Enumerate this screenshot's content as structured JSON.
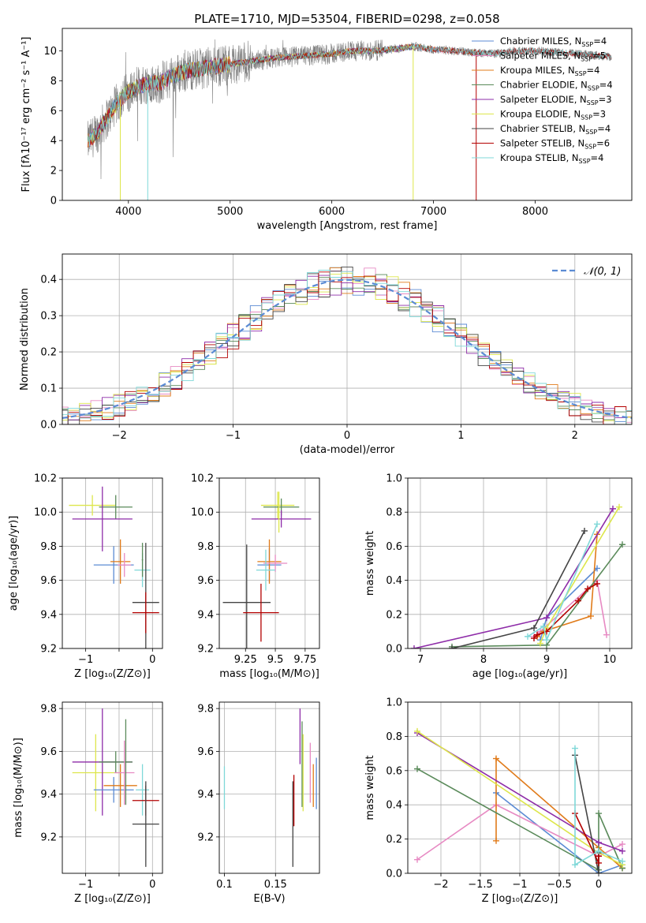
{
  "title": "PLATE=1710, MJD=53504, FIBERID=0298, z=0.058",
  "colors": {
    "chabrier_miles": "#5b8bd4",
    "salpeter_miles": "#e78ac3",
    "kroupa_miles": "#e07b1a",
    "chabrier_elodie": "#5a8a5a",
    "salpeter_elodie": "#8e2ca8",
    "kroupa_elodie": "#dde64b",
    "chabrier_stelib": "#444444",
    "salpeter_stelib": "#b30000",
    "kroupa_stelib": "#7fd8d8",
    "data": "#808080"
  },
  "chart_data": [
    {
      "id": "spectrum",
      "type": "line",
      "xlabel": "wavelength [Angstrom, rest frame]",
      "ylabel": "Flux [fλ10⁻¹⁷ erg cm⁻² s⁻¹ A⁻¹]",
      "xlim": [
        3350,
        8950
      ],
      "ylim": [
        0,
        11.5
      ],
      "xticks": [
        4000,
        5000,
        6000,
        7000,
        8000
      ],
      "yticks": [
        0,
        2,
        4,
        6,
        8,
        10
      ],
      "grid": false,
      "legend": "top-right",
      "legend_entries": [
        "Chabrier MILES, N_SSP=4",
        "Salpeter MILES, N_SSP=5",
        "Kroupa MILES, N_SSP=4",
        "Chabrier ELODIE, N_SSP=4",
        "Salpeter ELODIE, N_SSP=3",
        "Kroupa ELODIE, N_SSP=3",
        "Chabrier STELIB, N_SSP=4",
        "Salpeter STELIB, N_SSP=6",
        "Kroupa STELIB, N_SSP=4"
      ],
      "data_continuum": [
        [
          3600,
          3.9
        ],
        [
          3700,
          4.6
        ],
        [
          3800,
          5.6
        ],
        [
          3900,
          6.6
        ],
        [
          4000,
          7.3
        ],
        [
          4100,
          7.6
        ],
        [
          4200,
          7.9
        ],
        [
          4300,
          7.8
        ],
        [
          4400,
          8.2
        ],
        [
          4500,
          8.5
        ],
        [
          4600,
          8.7
        ],
        [
          4700,
          8.8
        ],
        [
          4800,
          8.9
        ],
        [
          4900,
          9.0
        ],
        [
          5000,
          9.1
        ],
        [
          5200,
          9.3
        ],
        [
          5400,
          9.5
        ],
        [
          5600,
          9.6
        ],
        [
          5800,
          9.7
        ],
        [
          6000,
          9.8
        ],
        [
          6200,
          10.0
        ],
        [
          6400,
          10.0
        ],
        [
          6600,
          10.1
        ],
        [
          6800,
          10.3
        ],
        [
          7000,
          10.1
        ],
        [
          7200,
          10.0
        ],
        [
          7400,
          9.9
        ],
        [
          7600,
          9.8
        ],
        [
          7800,
          10.0
        ],
        [
          8000,
          10.0
        ],
        [
          8200,
          9.9
        ],
        [
          8400,
          9.8
        ],
        [
          8600,
          9.7
        ],
        [
          8750,
          9.6
        ]
      ]
    },
    {
      "id": "residuals",
      "type": "line",
      "xlabel": "(data-model)/error",
      "ylabel": "Normed distribution",
      "xlim": [
        -2.5,
        2.5
      ],
      "ylim": [
        0,
        0.47
      ],
      "xticks": [
        -2,
        -1,
        0,
        1,
        2
      ],
      "yticks": [
        0.0,
        0.1,
        0.2,
        0.3,
        0.4
      ],
      "grid": true,
      "legend": "top-right",
      "legend_label": "𝒩(0, 1)"
    },
    {
      "id": "age_vs_Z",
      "type": "scatter",
      "xlabel": "Z [log₁₀(Z/Z⊙)]",
      "ylabel": "age  [log₁₀(age/yr)]",
      "xlim": [
        -1.35,
        0.15
      ],
      "ylim": [
        9.2,
        10.2
      ],
      "xticks": [
        -1,
        -0.5,
        0
      ],
      "xtick_labels": [
        "−1",
        "",
        "0"
      ],
      "yticks": [
        9.2,
        9.4,
        9.6,
        9.8,
        10.0,
        10.2
      ],
      "grid": true,
      "points": [
        {
          "x": -0.9,
          "y": 10.04,
          "xerr": 0.35,
          "yerr": 0.06,
          "c": "kroupa_elodie"
        },
        {
          "x": -0.55,
          "y": 10.03,
          "xerr": 0.25,
          "yerr": 0.07,
          "c": "chabrier_elodie"
        },
        {
          "x": -0.75,
          "y": 9.96,
          "xerr": 0.45,
          "yerr": 0.19,
          "c": "salpeter_elodie"
        },
        {
          "x": -0.58,
          "y": 9.69,
          "xerr": 0.3,
          "yerr": 0.11,
          "c": "chabrier_miles"
        },
        {
          "x": -0.48,
          "y": 9.71,
          "xerr": 0.15,
          "yerr": 0.13,
          "c": "kroupa_miles"
        },
        {
          "x": -0.42,
          "y": 9.69,
          "xerr": 0.1,
          "yerr": 0.07,
          "c": "salpeter_miles"
        },
        {
          "x": -0.15,
          "y": 9.66,
          "xerr": 0.12,
          "yerr": 0.1,
          "c": "kroupa_stelib"
        },
        {
          "x": -0.1,
          "y": 9.47,
          "xerr": 0.2,
          "yerr": 0.35,
          "c": "chabrier_stelib"
        },
        {
          "x": -0.1,
          "y": 9.41,
          "xerr": 0.2,
          "yerr": 0.12,
          "c": "salpeter_stelib"
        },
        {
          "x": -0.15,
          "y": 9.72,
          "xerr": 0.01,
          "yerr": 0.1,
          "c": "chabrier_elodie"
        }
      ]
    },
    {
      "id": "age_vs_mass",
      "type": "scatter",
      "xlabel": "mass [log₁₀(M/M⊙)]",
      "xlim": [
        9.03,
        9.87
      ],
      "ylim": [
        9.2,
        10.2
      ],
      "xticks": [
        9.25,
        9.5,
        9.75
      ],
      "yticks": [
        9.2,
        9.4,
        9.6,
        9.8,
        10.0,
        10.2
      ],
      "grid": true,
      "points": [
        {
          "x": 9.52,
          "y": 10.04,
          "xerr": 0.14,
          "yerr": 0.08,
          "c": "kroupa_elodie"
        },
        {
          "x": 9.55,
          "y": 10.03,
          "xerr": 0.15,
          "yerr": 0.05,
          "c": "chabrier_elodie"
        },
        {
          "x": 9.55,
          "y": 9.96,
          "xerr": 0.25,
          "yerr": 0.05,
          "c": "salpeter_elodie"
        },
        {
          "x": 9.53,
          "y": 10.0,
          "xerr": 0.01,
          "yerr": 0.12,
          "c": "kroupa_elodie"
        },
        {
          "x": 9.45,
          "y": 9.69,
          "xerr": 0.1,
          "yerr": 0.1,
          "c": "chabrier_miles"
        },
        {
          "x": 9.45,
          "y": 9.71,
          "xerr": 0.1,
          "yerr": 0.13,
          "c": "kroupa_miles"
        },
        {
          "x": 9.5,
          "y": 9.7,
          "xerr": 0.1,
          "yerr": 0.05,
          "c": "salpeter_miles"
        },
        {
          "x": 9.42,
          "y": 9.66,
          "xerr": 0.08,
          "yerr": 0.12,
          "c": "kroupa_stelib"
        },
        {
          "x": 9.26,
          "y": 9.47,
          "xerr": 0.2,
          "yerr": 0.34,
          "c": "chabrier_stelib"
        },
        {
          "x": 9.38,
          "y": 9.41,
          "xerr": 0.15,
          "yerr": 0.17,
          "c": "salpeter_stelib"
        }
      ]
    },
    {
      "id": "weight_vs_age",
      "type": "line",
      "xlabel": "age  [log₁₀(age/yr)]",
      "ylabel": "mass weight",
      "xlim": [
        6.8,
        10.35
      ],
      "ylim": [
        0,
        1.0
      ],
      "xticks": [
        7,
        8,
        9,
        10
      ],
      "yticks": [
        0.0,
        0.2,
        0.4,
        0.6,
        0.8,
        1.0
      ],
      "grid": true,
      "series": [
        {
          "c": "chabrier_miles",
          "x": [
            8.9,
            9.0,
            9.8
          ],
          "y": [
            0.05,
            0.18,
            0.47
          ]
        },
        {
          "c": "salpeter_miles",
          "x": [
            8.8,
            8.9,
            9.8,
            9.95
          ],
          "y": [
            0.07,
            0.1,
            0.4,
            0.08
          ]
        },
        {
          "c": "kroupa_miles",
          "x": [
            8.85,
            8.95,
            9.7,
            9.8
          ],
          "y": [
            0.07,
            0.1,
            0.19,
            0.67
          ]
        },
        {
          "c": "chabrier_elodie",
          "x": [
            7.5,
            9.0,
            10.2
          ],
          "y": [
            0.01,
            0.02,
            0.61
          ]
        },
        {
          "c": "salpeter_elodie",
          "x": [
            6.9,
            9.0,
            10.05
          ],
          "y": [
            0.0,
            0.18,
            0.82
          ]
        },
        {
          "c": "kroupa_elodie",
          "x": [
            8.9,
            9.0,
            10.15
          ],
          "y": [
            0.03,
            0.12,
            0.83
          ]
        },
        {
          "c": "chabrier_stelib",
          "x": [
            7.5,
            8.8,
            9.6
          ],
          "y": [
            0.0,
            0.12,
            0.69
          ]
        },
        {
          "c": "salpeter_stelib",
          "x": [
            8.8,
            8.85,
            9.0,
            9.5,
            9.65,
            9.8
          ],
          "y": [
            0.06,
            0.08,
            0.1,
            0.28,
            0.35,
            0.38
          ]
        },
        {
          "c": "kroupa_stelib",
          "x": [
            8.7,
            8.95,
            9.0,
            9.8
          ],
          "y": [
            0.07,
            0.13,
            0.05,
            0.73
          ]
        }
      ]
    },
    {
      "id": "mass_vs_Z",
      "type": "scatter",
      "xlabel": "Z [log₁₀(Z/Z⊙)]",
      "ylabel": "mass [log₁₀(M/M⊙)]",
      "xlim": [
        -1.35,
        0.15
      ],
      "ylim": [
        9.03,
        9.83
      ],
      "xticks": [
        -1,
        -0.5,
        0
      ],
      "xtick_labels": [
        "−1",
        "",
        "0"
      ],
      "yticks": [
        9.2,
        9.4,
        9.6,
        9.8
      ],
      "grid": true,
      "points": [
        {
          "x": -0.85,
          "y": 9.5,
          "xerr": 0.35,
          "yerr": 0.18,
          "c": "kroupa_elodie"
        },
        {
          "x": -0.75,
          "y": 9.55,
          "xerr": 0.45,
          "yerr": 0.25,
          "c": "salpeter_elodie"
        },
        {
          "x": -0.55,
          "y": 9.55,
          "xerr": 0.25,
          "yerr": 0.05,
          "c": "chabrier_elodie"
        },
        {
          "x": -0.58,
          "y": 9.42,
          "xerr": 0.3,
          "yerr": 0.06,
          "c": "chabrier_miles"
        },
        {
          "x": -0.48,
          "y": 9.44,
          "xerr": 0.25,
          "yerr": 0.1,
          "c": "kroupa_miles"
        },
        {
          "x": -0.42,
          "y": 9.5,
          "xerr": 0.15,
          "yerr": 0.15,
          "c": "salpeter_miles"
        },
        {
          "x": -0.4,
          "y": 9.55,
          "xerr": 0.01,
          "yerr": 0.2,
          "c": "chabrier_elodie"
        },
        {
          "x": -0.15,
          "y": 9.42,
          "xerr": 0.1,
          "yerr": 0.12,
          "c": "kroupa_stelib"
        },
        {
          "x": -0.1,
          "y": 9.37,
          "xerr": 0.2,
          "yerr": 0.07,
          "c": "salpeter_stelib"
        },
        {
          "x": -0.1,
          "y": 9.26,
          "xerr": 0.2,
          "yerr": 0.2,
          "c": "chabrier_stelib"
        }
      ]
    },
    {
      "id": "mass_vs_ebv",
      "type": "scatter",
      "xlabel": "E(B-V)",
      "xlim": [
        0.095,
        0.193
      ],
      "ylim": [
        9.03,
        9.83
      ],
      "xticks": [
        0.1,
        0.15
      ],
      "yticks": [
        9.2,
        9.4,
        9.6,
        9.8
      ],
      "grid": true,
      "points": [
        {
          "x": 0.1,
          "y": 9.43,
          "xerr": 0,
          "yerr": 0.1,
          "c": "kroupa_stelib"
        },
        {
          "x": 0.167,
          "y": 9.26,
          "xerr": 0,
          "yerr": 0.2,
          "c": "chabrier_stelib"
        },
        {
          "x": 0.168,
          "y": 9.37,
          "xerr": 0,
          "yerr": 0.12,
          "c": "salpeter_stelib"
        },
        {
          "x": 0.174,
          "y": 9.67,
          "xerr": 0,
          "yerr": 0.13,
          "c": "salpeter_elodie"
        },
        {
          "x": 0.176,
          "y": 9.54,
          "xerr": 0,
          "yerr": 0.2,
          "c": "chabrier_elodie"
        },
        {
          "x": 0.177,
          "y": 9.5,
          "xerr": 0,
          "yerr": 0.18,
          "c": "kroupa_elodie"
        },
        {
          "x": 0.184,
          "y": 9.5,
          "xerr": 0,
          "yerr": 0.14,
          "c": "salpeter_miles"
        },
        {
          "x": 0.187,
          "y": 9.44,
          "xerr": 0,
          "yerr": 0.1,
          "c": "kroupa_miles"
        },
        {
          "x": 0.19,
          "y": 9.45,
          "xerr": 0,
          "yerr": 0.12,
          "c": "chabrier_miles"
        }
      ]
    },
    {
      "id": "weight_vs_Z",
      "type": "line",
      "xlabel": "Z [log₁₀(Z/Z⊙)]",
      "ylabel": "mass weight",
      "xlim": [
        -2.42,
        0.42
      ],
      "ylim": [
        0,
        1.0
      ],
      "xticks": [
        -2.0,
        -1.5,
        -1.0,
        -0.5,
        0.0
      ],
      "yticks": [
        0.0,
        0.2,
        0.4,
        0.6,
        0.8,
        1.0
      ],
      "grid": true,
      "series": [
        {
          "c": "chabrier_miles",
          "x": [
            -1.3,
            0.0,
            0.3
          ],
          "y": [
            0.47,
            0.0,
            0.05
          ]
        },
        {
          "c": "salpeter_miles",
          "x": [
            -2.3,
            -1.3,
            0.0,
            0.3
          ],
          "y": [
            0.08,
            0.4,
            0.1,
            0.17
          ]
        },
        {
          "c": "kroupa_miles",
          "x": [
            -1.3,
            -1.3,
            0.0,
            0.3
          ],
          "y": [
            0.19,
            0.67,
            0.15,
            0.03
          ]
        },
        {
          "c": "chabrier_elodie",
          "x": [
            -2.3,
            0.0,
            0.0,
            0.3
          ],
          "y": [
            0.61,
            0.02,
            0.35,
            0.03
          ]
        },
        {
          "c": "salpeter_elodie",
          "x": [
            -2.3,
            0.0,
            0.3
          ],
          "y": [
            0.82,
            0.18,
            0.13
          ]
        },
        {
          "c": "kroupa_elodie",
          "x": [
            -2.3,
            0.0,
            0.3
          ],
          "y": [
            0.83,
            0.12,
            0.05
          ]
        },
        {
          "c": "chabrier_stelib",
          "x": [
            -0.3,
            0.0,
            0.0
          ],
          "y": [
            0.69,
            0.0,
            0.12
          ]
        },
        {
          "c": "salpeter_stelib",
          "x": [
            -0.3,
            0.0,
            0.0
          ],
          "y": [
            0.35,
            0.06,
            0.1
          ]
        },
        {
          "c": "kroupa_stelib",
          "x": [
            -0.3,
            -0.3,
            0.0,
            0.3
          ],
          "y": [
            0.73,
            0.05,
            0.13,
            0.07
          ]
        }
      ]
    }
  ]
}
